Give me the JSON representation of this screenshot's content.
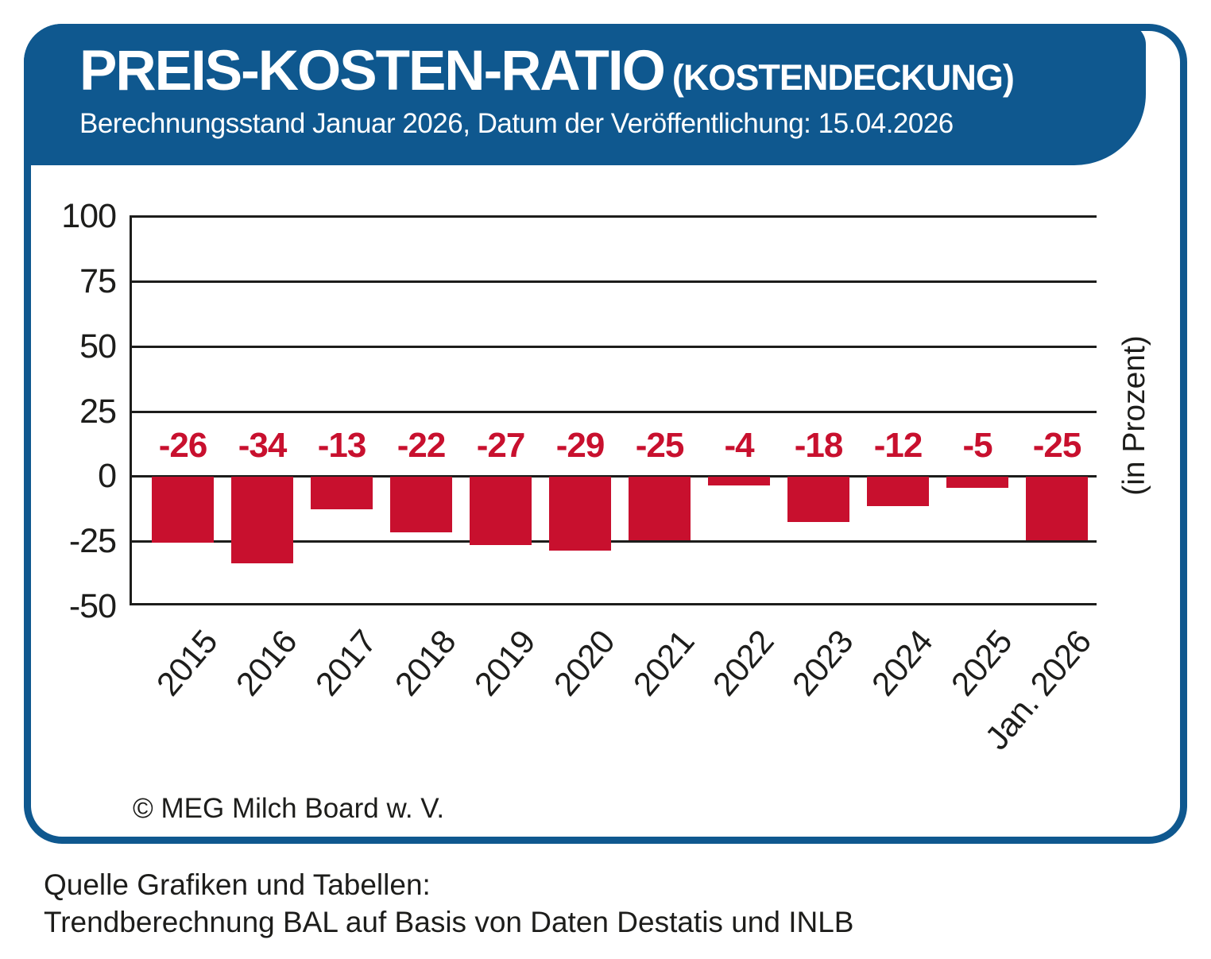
{
  "header": {
    "title": "PREIS-KOSTEN-RATIO",
    "title_suffix": "(KOSTENDECKUNG)",
    "subtitle": "Berechnungsstand Januar 2026, Datum der Veröffentlichung: 15.04.2026"
  },
  "chart_data": {
    "type": "bar",
    "categories": [
      "2015",
      "2016",
      "2017",
      "2018",
      "2019",
      "2020",
      "2021",
      "2022",
      "2023",
      "2024",
      "2025",
      "Jan. 2026"
    ],
    "values": [
      -26,
      -34,
      -13,
      -22,
      -27,
      -29,
      -25,
      -4,
      -18,
      -12,
      -5,
      -25
    ],
    "title": "PREIS-KOSTEN-RATIO (KOSTENDECKUNG)",
    "xlabel": "",
    "ylabel": "(in Prozent)",
    "ylim": [
      -50,
      100
    ],
    "yticks": [
      100,
      75,
      50,
      25,
      0,
      -25,
      -50
    ],
    "grid": true,
    "legend_position": "none",
    "bar_color": "#c8102e",
    "value_label_color": "#c8102e"
  },
  "chart_footer": {
    "copyright": "© MEG Milch Board w. V."
  },
  "footer": {
    "line1": "Quelle Grafiken und Tabellen:",
    "line2": "Trendberechnung BAL auf Basis von Daten Destatis und INLB"
  },
  "colors": {
    "brand_blue": "#0f588f",
    "bar_red": "#c8102e",
    "text_black": "#1d1d1b"
  }
}
